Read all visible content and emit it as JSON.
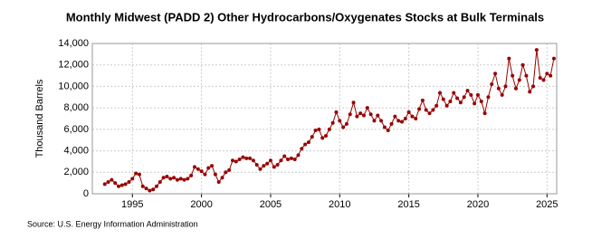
{
  "chart_data": {
    "type": "line",
    "title": "Monthly Midwest (PADD 2) Other Hydrocarbons/Oxygenates Stocks at Bulk Terminals",
    "y_label": "Thousand Barrels",
    "source": "Source: U.S. Energy Information Administration",
    "xlim": [
      1992.1,
      2025.7
    ],
    "xticks": [
      1995,
      2000,
      2005,
      2010,
      2015,
      2020,
      2025
    ],
    "ylim": [
      0,
      14000
    ],
    "yticks": [
      0,
      {
        "value": 2000,
        "label": "2,000"
      },
      {
        "value": 4000,
        "label": "4,000"
      },
      {
        "value": 6000,
        "label": "6,000"
      },
      {
        "value": 8000,
        "label": "8,000"
      },
      {
        "value": 10000,
        "label": "10,000"
      },
      {
        "value": 12000,
        "label": "12,000"
      },
      {
        "value": 14000,
        "label": "14,000"
      }
    ],
    "grid": true,
    "x": [
      1993,
      1993.25,
      1993.5,
      1993.75,
      1994,
      1994.25,
      1994.5,
      1994.75,
      1995,
      1995.25,
      1995.5,
      1995.75,
      1996,
      1996.25,
      1996.5,
      1996.75,
      1997,
      1997.25,
      1997.5,
      1997.75,
      1998,
      1998.25,
      1998.5,
      1998.75,
      1999,
      1999.25,
      1999.5,
      1999.75,
      2000,
      2000.25,
      2000.5,
      2000.75,
      2001,
      2001.25,
      2001.5,
      2001.75,
      2002,
      2002.25,
      2002.5,
      2002.75,
      2003,
      2003.25,
      2003.5,
      2003.75,
      2004,
      2004.25,
      2004.5,
      2004.75,
      2005,
      2005.25,
      2005.5,
      2005.75,
      2006,
      2006.25,
      2006.5,
      2006.75,
      2007,
      2007.25,
      2007.5,
      2007.75,
      2008,
      2008.25,
      2008.5,
      2008.75,
      2009,
      2009.25,
      2009.5,
      2009.75,
      2010,
      2010.25,
      2010.5,
      2010.75,
      2011,
      2011.25,
      2011.5,
      2011.75,
      2012,
      2012.25,
      2012.5,
      2012.75,
      2013,
      2013.25,
      2013.5,
      2013.75,
      2014,
      2014.25,
      2014.5,
      2014.75,
      2015,
      2015.25,
      2015.5,
      2015.75,
      2016,
      2016.25,
      2016.5,
      2016.75,
      2017,
      2017.25,
      2017.5,
      2017.75,
      2018,
      2018.25,
      2018.5,
      2018.75,
      2019,
      2019.25,
      2019.5,
      2019.75,
      2020,
      2020.25,
      2020.5,
      2020.75,
      2021,
      2021.25,
      2021.5,
      2021.75,
      2022,
      2022.25,
      2022.5,
      2022.75,
      2023,
      2023.25,
      2023.5,
      2023.75,
      2024,
      2024.25,
      2024.5,
      2024.75,
      2025,
      2025.25,
      2025.5
    ],
    "series": [
      {
        "name": "Stocks",
        "color": "#990000",
        "values": [
          900,
          1100,
          1300,
          1000,
          700,
          800,
          900,
          1100,
          1400,
          1900,
          1800,
          700,
          500,
          300,
          400,
          700,
          1100,
          1500,
          1600,
          1400,
          1500,
          1300,
          1400,
          1300,
          1400,
          1700,
          2500,
          2300,
          2100,
          1800,
          2400,
          2600,
          1800,
          1100,
          1500,
          2000,
          2200,
          3100,
          3000,
          3200,
          3400,
          3300,
          3300,
          3100,
          2700,
          2300,
          2600,
          2800,
          3100,
          2500,
          2700,
          3100,
          3500,
          3200,
          3300,
          3200,
          3600,
          4200,
          4600,
          4800,
          5300,
          5900,
          6000,
          5200,
          5400,
          6000,
          6600,
          7600,
          6800,
          6200,
          6500,
          7400,
          8500,
          7200,
          7500,
          7300,
          8000,
          7400,
          6800,
          7300,
          6800,
          6200,
          5900,
          6500,
          7200,
          6800,
          6700,
          7000,
          7600,
          7200,
          7000,
          7900,
          8700,
          7800,
          7500,
          7800,
          8200,
          9400,
          8800,
          8200,
          8600,
          9400,
          8900,
          8500,
          9000,
          9600,
          9200,
          8400,
          9200,
          8600,
          7500,
          9000,
          10200,
          11200,
          9800,
          9200,
          10000,
          12600,
          11000,
          9800,
          10600,
          12000,
          11000,
          9500,
          10000,
          13400,
          10800,
          10600,
          11200,
          11000,
          12600
        ]
      }
    ]
  }
}
